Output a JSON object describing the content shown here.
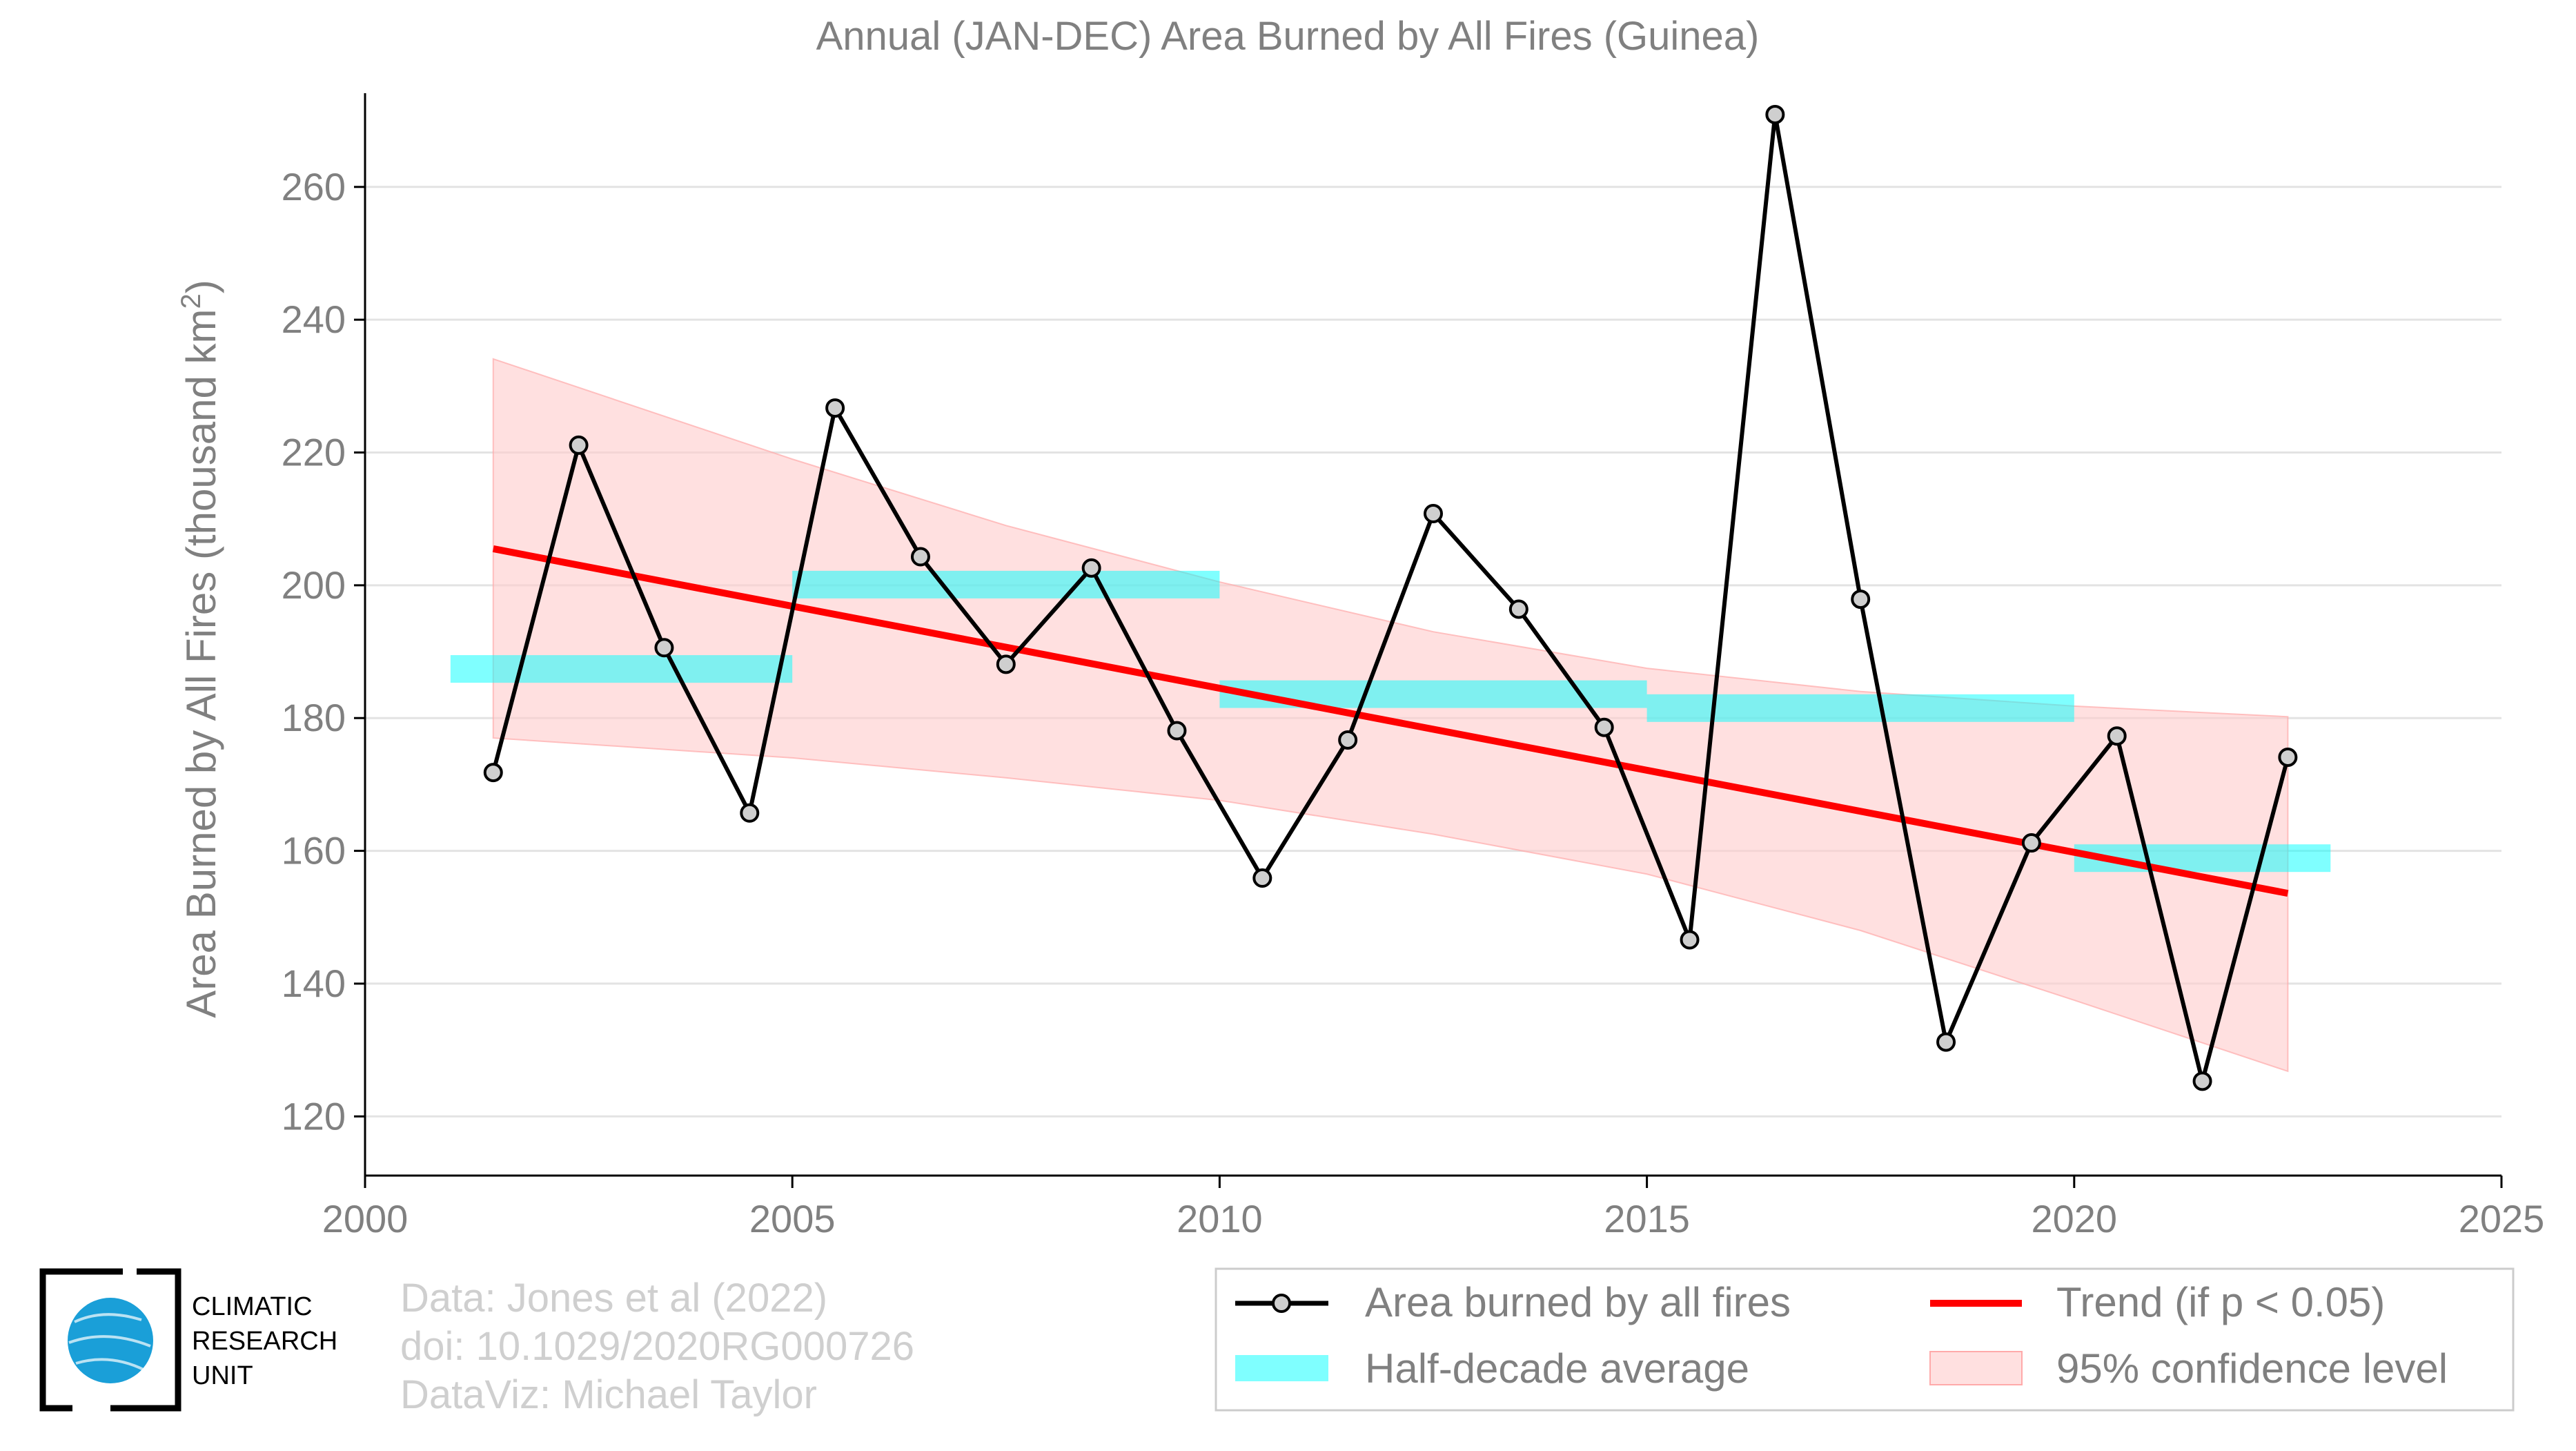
{
  "chart_data": {
    "type": "line",
    "title": "Annual (JAN-DEC) Area Burned by All Fires (Guinea)",
    "ylabel": "Area Burned by All Fires (thousand km²)",
    "ylabel_main": "Area Burned by All Fires (thousand km",
    "ylabel_sup": "2",
    "ylabel_end": ")",
    "xlabel": "",
    "xlim": [
      2000,
      2025
    ],
    "ylim": [
      114,
      271
    ],
    "xticks": [
      2000,
      2005,
      2010,
      2015,
      2020,
      2025
    ],
    "yticks": [
      120,
      140,
      160,
      180,
      200,
      220,
      240,
      260
    ],
    "grid": true,
    "legend_position": "bottom-right",
    "series": [
      {
        "name": "Area burned by all fires",
        "color": "#000000",
        "marker_fill": "#cfcfcf",
        "x": [
          2001.5,
          2002.5,
          2003.5,
          2004.5,
          2005.5,
          2006.5,
          2007.5,
          2008.5,
          2009.5,
          2010.5,
          2011.5,
          2012.5,
          2013.5,
          2014.5,
          2015.5,
          2016.5,
          2017.5,
          2018.5,
          2019.5,
          2020.5,
          2021.5,
          2022.5
        ],
        "y": [
          171.8,
          221.1,
          190.6,
          165.7,
          226.7,
          204.3,
          188.1,
          202.6,
          178.1,
          155.9,
          176.7,
          210.8,
          196.4,
          178.6,
          146.6,
          270.9,
          197.9,
          131.2,
          161.2,
          177.3,
          125.3,
          174.1
        ]
      }
    ],
    "half_decade_average": {
      "name": "Half-decade average",
      "color": "#00ffff",
      "segments": [
        {
          "x": [
            2001,
            2005
          ],
          "y": 187.4
        },
        {
          "x": [
            2005,
            2010
          ],
          "y": 200.1
        },
        {
          "x": [
            2010,
            2015
          ],
          "y": 183.6
        },
        {
          "x": [
            2015,
            2020
          ],
          "y": 181.5
        },
        {
          "x": [
            2020,
            2023
          ],
          "y": 158.9
        }
      ]
    },
    "trend": {
      "name": "Trend (if p < 0.05)",
      "color": "#ff0000",
      "x": [
        2001.5,
        2022.5
      ],
      "y": [
        205.5,
        153.6
      ]
    },
    "confidence_band": {
      "name": "95% confidence level",
      "color": "#ffcccc",
      "x": [
        2001.5,
        2005.0,
        2007.5,
        2010.0,
        2012.5,
        2015.0,
        2017.5,
        2020.0,
        2022.5
      ],
      "upper": [
        234.1,
        219.0,
        209.0,
        200.5,
        193.0,
        187.5,
        184.0,
        181.8,
        180.2
      ],
      "lower": [
        177.0,
        174.0,
        171.0,
        167.6,
        162.5,
        156.5,
        148.0,
        137.5,
        126.8
      ]
    }
  },
  "legend": {
    "items": [
      {
        "label": "Area burned by all fires"
      },
      {
        "label": "Trend (if p < 0.05)"
      },
      {
        "label": "Half-decade average"
      },
      {
        "label": "95% confidence level"
      }
    ]
  },
  "credits": {
    "line1": "Data: Jones et al (2022)",
    "line2": "doi: 10.1029/2020RG000726",
    "line3": "DataViz: Michael Taylor"
  },
  "logo": {
    "line1": "CLIMATIC",
    "line2": "RESEARCH",
    "line3": "UNIT"
  }
}
